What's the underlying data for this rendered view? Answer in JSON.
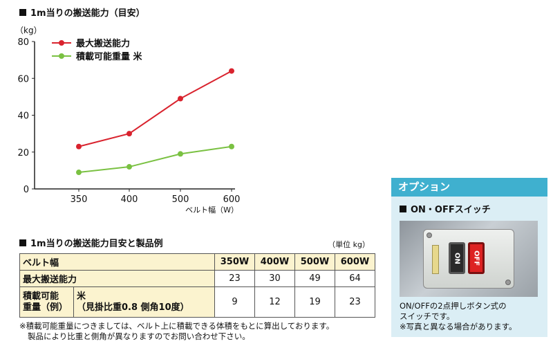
{
  "chart_section": {
    "title": "1m当りの搬送能力（目安）"
  },
  "chart_data": {
    "type": "line",
    "ylabel": "（kg）",
    "xlabel": "ベルト幅（W）",
    "ylim": [
      0,
      80
    ],
    "yticks": [
      0,
      20,
      40,
      60,
      80
    ],
    "categories": [
      "350",
      "400",
      "500",
      "600"
    ],
    "legend_position": "top-left",
    "series": [
      {
        "name": "最大搬送能力",
        "color": "#d9232e",
        "values": [
          23,
          30,
          49,
          64
        ]
      },
      {
        "name": "積載可能重量 米",
        "color": "#7ac142",
        "values": [
          9,
          12,
          19,
          23
        ]
      }
    ]
  },
  "table_section": {
    "title": "1m当りの搬送能力目安と製品例",
    "unit": "（単位 kg）",
    "header_label": "ベルト幅",
    "widths": [
      "350W",
      "400W",
      "500W",
      "600W"
    ],
    "row_max": {
      "label": "最大搬送能力",
      "values": [
        "23",
        "30",
        "49",
        "64"
      ]
    },
    "row_load": {
      "label_line1": "積載可能",
      "label_line2": "重量（例）",
      "desc_line1": "米",
      "desc_line2": "（見掛比重0.8 側角10度）",
      "values": [
        "9",
        "12",
        "19",
        "23"
      ]
    }
  },
  "footnote": {
    "line1": "※積載可能重量につきましては、ベルト上に積載できる体積をもとに算出しております。",
    "line2": "製品により比重と側角が異なりますのでお問い合わせ下さい。"
  },
  "option": {
    "header": "オプション",
    "subtitle": "ON・OFFスイッチ",
    "btn_on": "ON",
    "btn_off": "OFF",
    "text1": "ON/OFFの2点押しボタン式の",
    "text2": "スイッチです。",
    "text3": "※写真と異なる場合があります。"
  }
}
